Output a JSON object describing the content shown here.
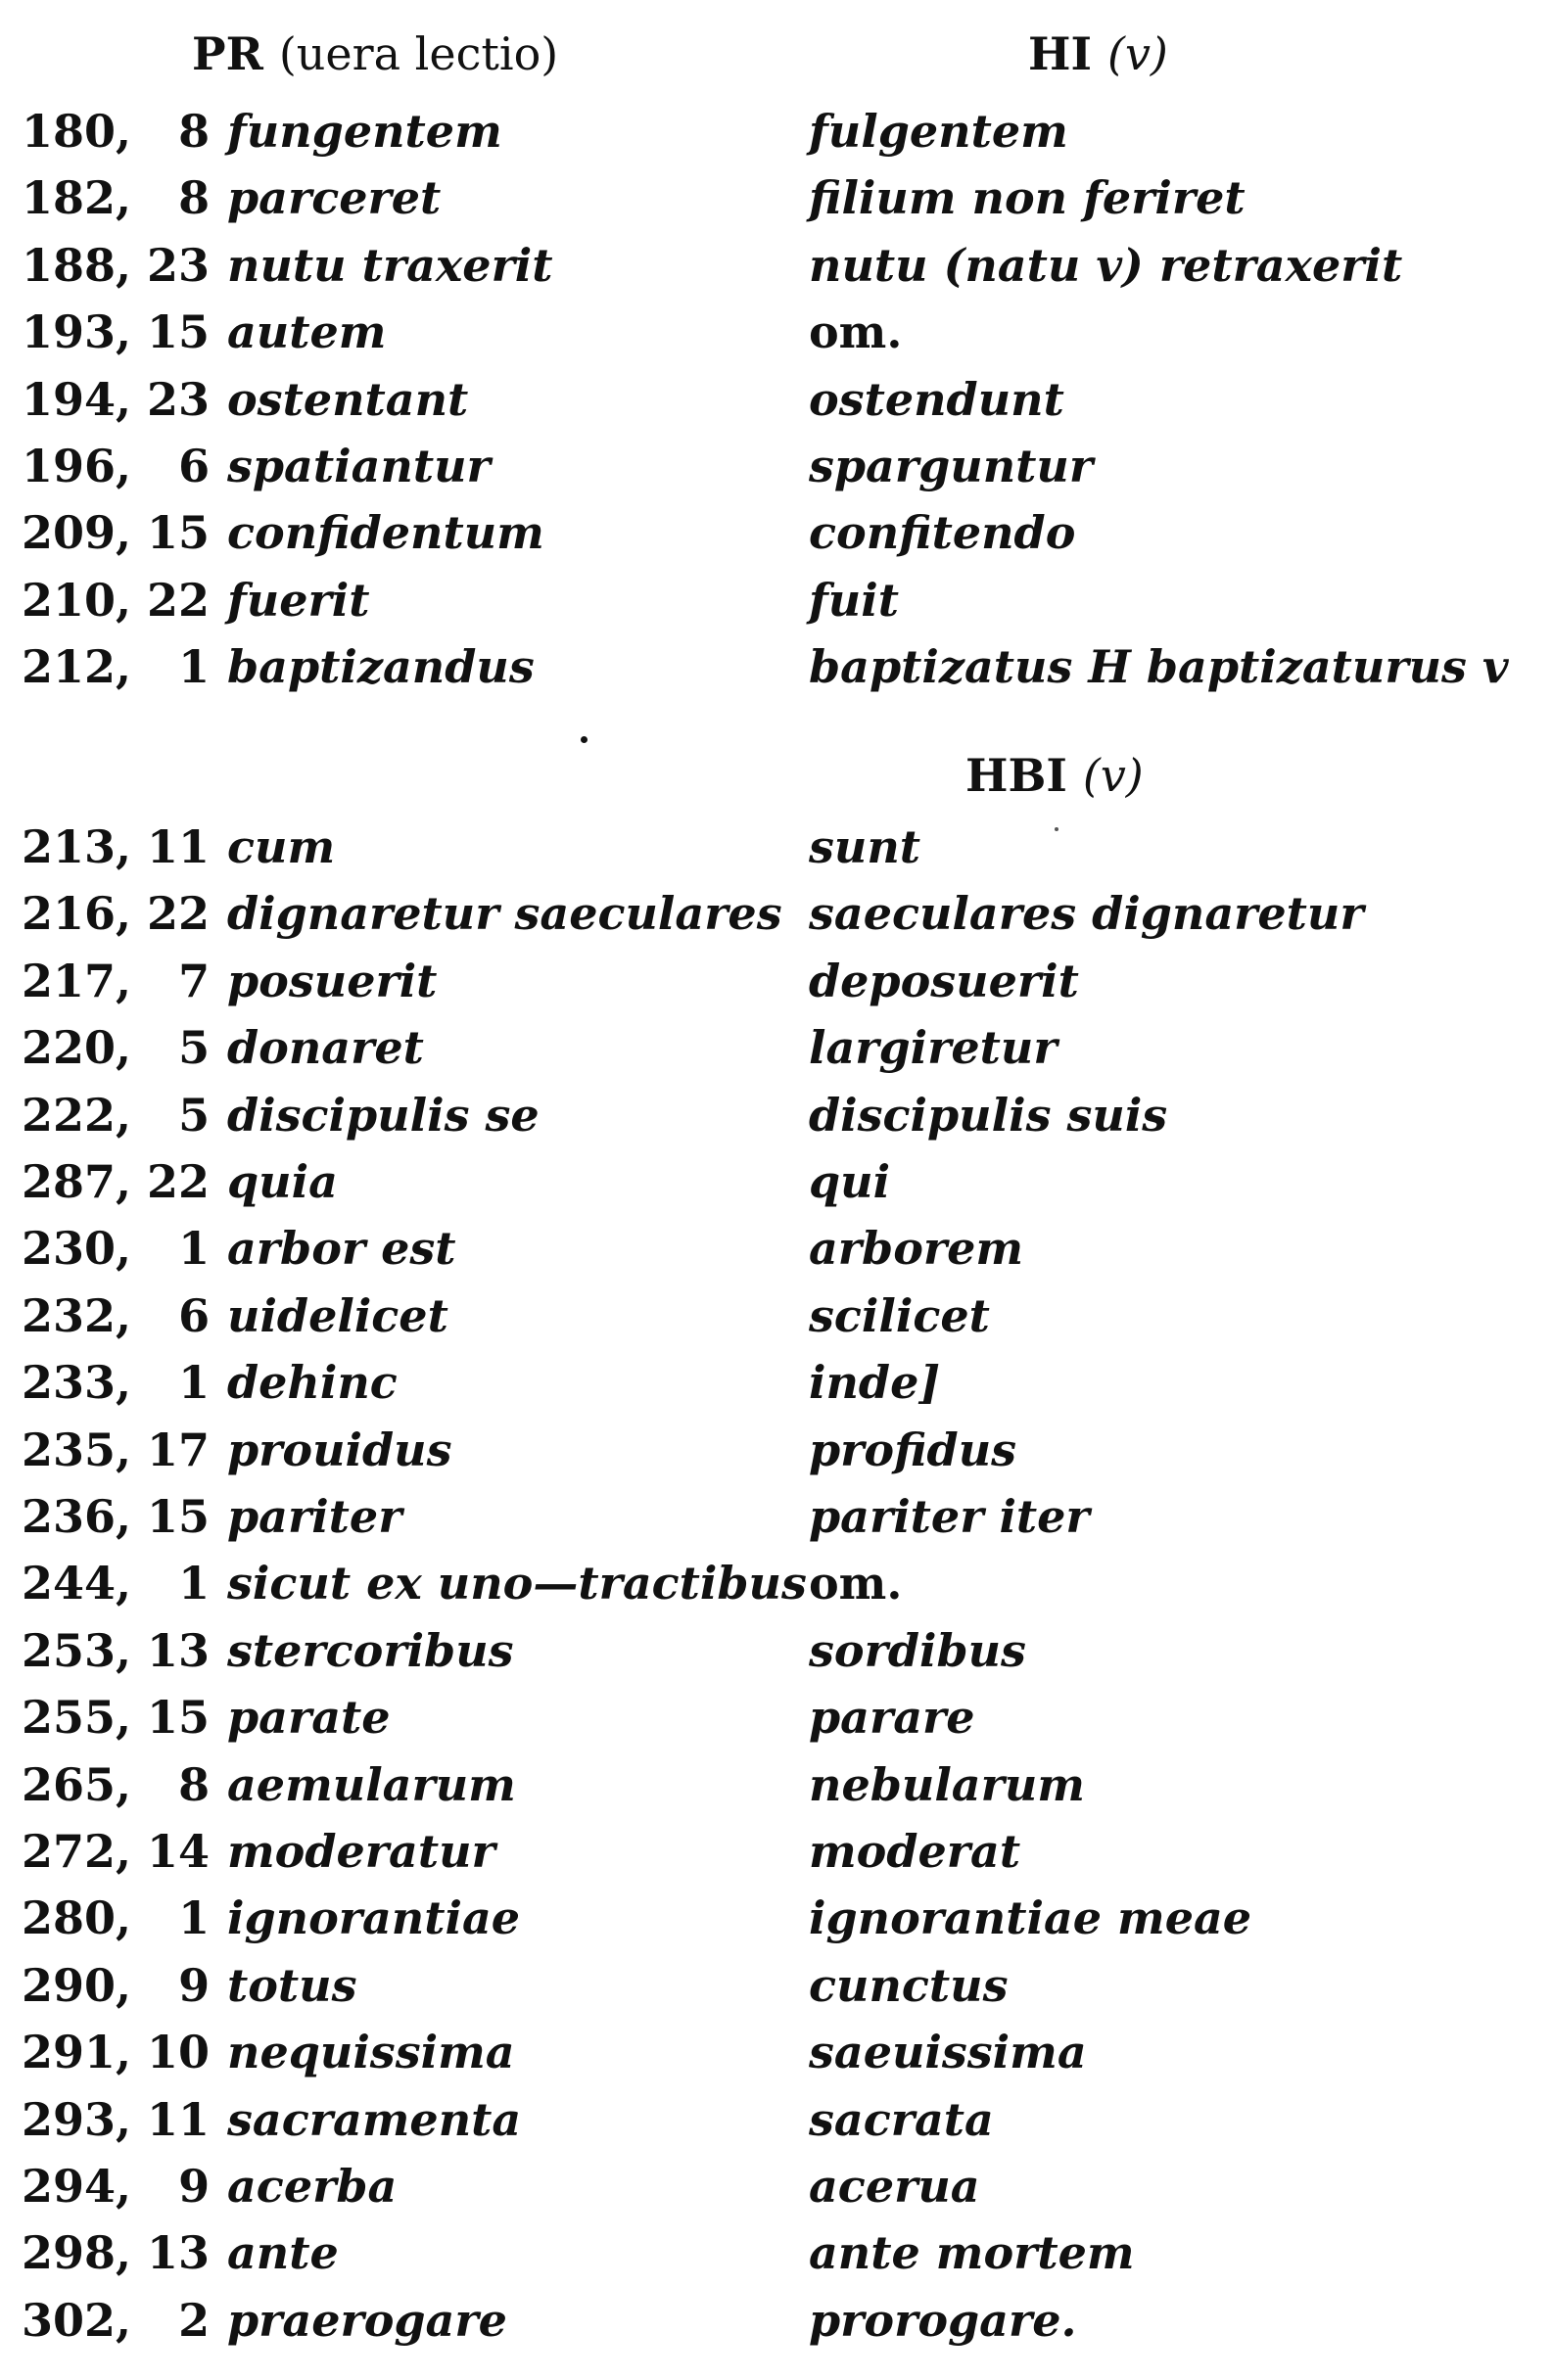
{
  "header_left": {
    "sigla": "PR",
    "note": "(uera lectio)"
  },
  "header_right_1": {
    "sigla": "HI",
    "note": "(v)"
  },
  "header_right_2": {
    "sigla": "HBI",
    "note": "(v)"
  },
  "rows_group1": [
    {
      "ref": "180,   8",
      "lectio": "fungentem",
      "variant": "fulgentem"
    },
    {
      "ref": "182,   8",
      "lectio": "parceret",
      "variant": "filium non feriret"
    },
    {
      "ref": "188, 23",
      "lectio": "nutu traxerit",
      "variant": "nutu (natu v) retraxerit"
    },
    {
      "ref": "193, 15",
      "lectio": "autem",
      "variant": "om."
    },
    {
      "ref": "194, 23",
      "lectio": "ostentant",
      "variant": "ostendunt"
    },
    {
      "ref": "196,   6",
      "lectio": "spatiantur",
      "variant": "sparguntur"
    },
    {
      "ref": "209, 15",
      "lectio": "confidentum",
      "variant": "confitendo"
    },
    {
      "ref": "210, 22",
      "lectio": "fuerit",
      "variant": "fuit"
    },
    {
      "ref": "212,   1",
      "lectio": "baptizandus",
      "variant": "baptizatus H baptizaturus v"
    }
  ],
  "rows_group2": [
    {
      "ref": "213, 11",
      "lectio": "cum",
      "variant": "sunt"
    },
    {
      "ref": "216, 22",
      "lectio": "dignaretur saeculares",
      "variant": "saeculares dignaretur"
    },
    {
      "ref": "217,   7",
      "lectio": "posuerit",
      "variant": "deposuerit"
    },
    {
      "ref": "220,   5",
      "lectio": "donaret",
      "variant": "largiretur"
    },
    {
      "ref": "222,   5",
      "lectio": "discipulis se",
      "variant": "discipulis suis"
    },
    {
      "ref": "287, 22",
      "lectio": "quia",
      "variant": "qui"
    },
    {
      "ref": "230,   1",
      "lectio": "arbor est",
      "variant": "arborem"
    },
    {
      "ref": "232,   6",
      "lectio": "uidelicet",
      "variant": "scilicet"
    },
    {
      "ref": "233,   1",
      "lectio": "dehinc",
      "variant": "inde]"
    },
    {
      "ref": "235, 17",
      "lectio": "prouidus",
      "variant": "profidus"
    },
    {
      "ref": "236, 15",
      "lectio": "pariter",
      "variant": "pariter iter"
    },
    {
      "ref": "244,   1",
      "lectio": "sicut ex uno—tractibus",
      "variant": "om."
    },
    {
      "ref": "253, 13",
      "lectio": "stercoribus",
      "variant": "sordibus"
    },
    {
      "ref": "255, 15",
      "lectio": "parate",
      "variant": "parare"
    },
    {
      "ref": "265,   8",
      "lectio": "aemularum",
      "variant": "nebularum"
    },
    {
      "ref": "272, 14",
      "lectio": "moderatur",
      "variant": "moderat"
    },
    {
      "ref": "280,   1",
      "lectio": "ignorantiae",
      "variant": "ignorantiae meae"
    },
    {
      "ref": "290,   9",
      "lectio": "totus",
      "variant": "cunctus"
    },
    {
      "ref": "291, 10",
      "lectio": "nequissima",
      "variant": "saeuissima"
    },
    {
      "ref": "293, 11",
      "lectio": "sacramenta",
      "variant": "sacrata"
    },
    {
      "ref": "294,   9",
      "lectio": "acerba",
      "variant": "acerua"
    },
    {
      "ref": "298, 13",
      "lectio": "ante",
      "variant": "ante mortem"
    },
    {
      "ref": "302,   2",
      "lectio": "praerogare",
      "variant": "prorogare."
    }
  ]
}
